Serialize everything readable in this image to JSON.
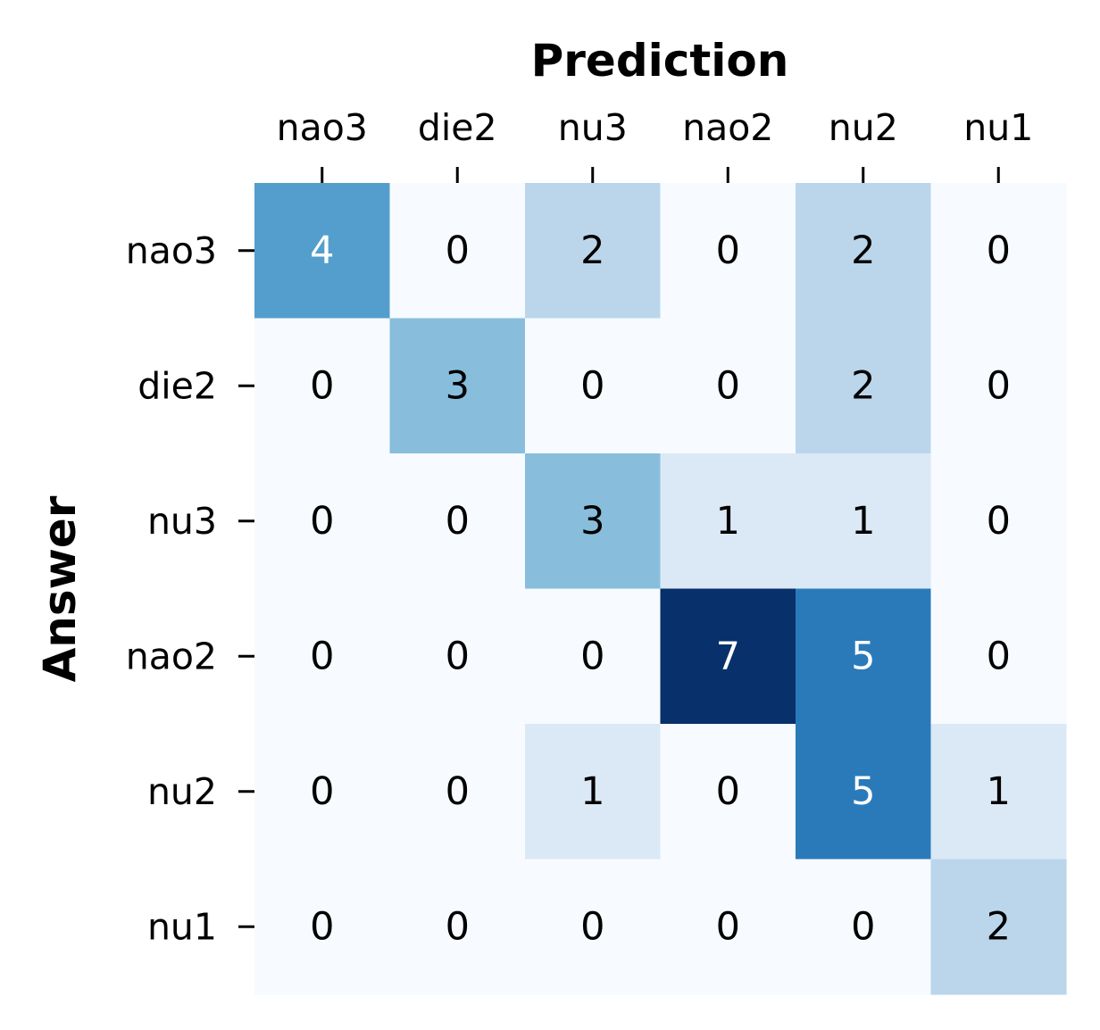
{
  "chart_data": {
    "type": "heatmap",
    "xlabel": "Prediction",
    "ylabel": "Answer",
    "x_categories": [
      "nao3",
      "die2",
      "nu3",
      "nao2",
      "nu2",
      "nu1"
    ],
    "y_categories": [
      "nao3",
      "die2",
      "nu3",
      "nao2",
      "nu2",
      "nu1"
    ],
    "values": [
      [
        4,
        0,
        2,
        0,
        2,
        0
      ],
      [
        0,
        3,
        0,
        0,
        2,
        0
      ],
      [
        0,
        0,
        3,
        1,
        1,
        0
      ],
      [
        0,
        0,
        0,
        7,
        5,
        0
      ],
      [
        0,
        0,
        1,
        0,
        5,
        1
      ],
      [
        0,
        0,
        0,
        0,
        0,
        2
      ]
    ],
    "x_axis_position": "top",
    "colorscale": "Blues",
    "value_range": [
      0,
      7
    ],
    "colorbar": false,
    "grid": false
  }
}
